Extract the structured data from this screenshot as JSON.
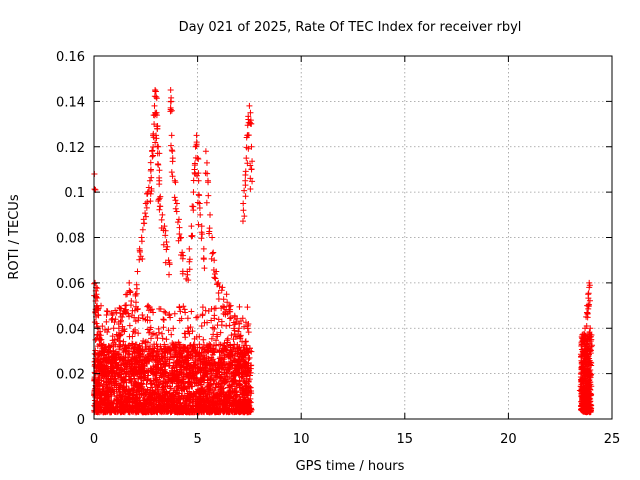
{
  "chart_data": {
    "type": "scatter",
    "title": "Day 021 of 2025, Rate Of TEC Index for receiver rbyl",
    "xlabel": "GPS time / hours",
    "ylabel": "ROTI / TECUs",
    "xlim": [
      0,
      25
    ],
    "ylim": [
      0,
      0.16
    ],
    "xticks": [
      0,
      5,
      10,
      15,
      20,
      25
    ],
    "xtick_labels": [
      "0",
      "5",
      "10",
      "15",
      "20",
      "25"
    ],
    "yticks": [
      0,
      0.02,
      0.04,
      0.06,
      0.08,
      0.1,
      0.12,
      0.14,
      0.16
    ],
    "ytick_labels": [
      "0",
      "0.02",
      "0.04",
      "0.06",
      "0.08",
      "0.1",
      "0.12",
      "0.14",
      "0.16"
    ],
    "grid": true,
    "marker": "+",
    "series_color": "#ff0000",
    "series": [
      {
        "name": "ROTI",
        "description_ranges": "dense cluster 0–7.6 h, second cluster 23.5–24 h",
        "points": [
          [
            0.02,
            0.108
          ],
          [
            0.05,
            0.06
          ],
          [
            0.1,
            0.058
          ],
          [
            0.12,
            0.055
          ],
          [
            0.08,
            0.052
          ],
          [
            0.15,
            0.05
          ],
          [
            0.1,
            0.045
          ],
          [
            0.2,
            0.04
          ],
          [
            0.3,
            0.035
          ],
          [
            0.4,
            0.03
          ],
          [
            0.5,
            0.028
          ],
          [
            0.6,
            0.025
          ],
          [
            0.8,
            0.03
          ],
          [
            1.0,
            0.035
          ],
          [
            1.2,
            0.04
          ],
          [
            1.3,
            0.045
          ],
          [
            1.5,
            0.05
          ],
          [
            1.6,
            0.055
          ],
          [
            1.7,
            0.06
          ],
          [
            1.8,
            0.052
          ],
          [
            2.0,
            0.055
          ],
          [
            2.1,
            0.065
          ],
          [
            2.2,
            0.075
          ],
          [
            2.3,
            0.08
          ],
          [
            2.4,
            0.088
          ],
          [
            2.5,
            0.095
          ],
          [
            2.6,
            0.1
          ],
          [
            2.7,
            0.105
          ],
          [
            2.75,
            0.11
          ],
          [
            2.8,
            0.118
          ],
          [
            2.85,
            0.125
          ],
          [
            2.9,
            0.13
          ],
          [
            2.92,
            0.138
          ],
          [
            2.95,
            0.145
          ],
          [
            3.0,
            0.142
          ],
          [
            3.02,
            0.135
          ],
          [
            3.05,
            0.128
          ],
          [
            3.1,
            0.12
          ],
          [
            3.1,
            0.112
          ],
          [
            3.15,
            0.105
          ],
          [
            3.2,
            0.098
          ],
          [
            3.3,
            0.09
          ],
          [
            3.4,
            0.085
          ],
          [
            3.5,
            0.078
          ],
          [
            3.6,
            0.07
          ],
          [
            3.7,
            0.145
          ],
          [
            3.72,
            0.14
          ],
          [
            3.75,
            0.125
          ],
          [
            3.8,
            0.115
          ],
          [
            3.9,
            0.105
          ],
          [
            4.0,
            0.095
          ],
          [
            4.1,
            0.088
          ],
          [
            4.2,
            0.08
          ],
          [
            4.3,
            0.072
          ],
          [
            4.5,
            0.065
          ],
          [
            4.6,
            0.075
          ],
          [
            4.7,
            0.085
          ],
          [
            4.8,
            0.1
          ],
          [
            4.85,
            0.11
          ],
          [
            4.9,
            0.12
          ],
          [
            4.95,
            0.125
          ],
          [
            5.0,
            0.115
          ],
          [
            5.05,
            0.105
          ],
          [
            5.1,
            0.095
          ],
          [
            5.2,
            0.085
          ],
          [
            5.3,
            0.075
          ],
          [
            5.4,
            0.118
          ],
          [
            5.5,
            0.105
          ],
          [
            5.6,
            0.09
          ],
          [
            5.7,
            0.08
          ],
          [
            5.8,
            0.07
          ],
          [
            5.9,
            0.065
          ],
          [
            6.0,
            0.06
          ],
          [
            6.2,
            0.058
          ],
          [
            6.4,
            0.055
          ],
          [
            6.6,
            0.05
          ],
          [
            6.8,
            0.045
          ],
          [
            7.0,
            0.04
          ],
          [
            7.2,
            0.095
          ],
          [
            7.3,
            0.105
          ],
          [
            7.35,
            0.115
          ],
          [
            7.4,
            0.125
          ],
          [
            7.45,
            0.132
          ],
          [
            7.5,
            0.138
          ],
          [
            7.55,
            0.135
          ],
          [
            7.6,
            0.12
          ],
          [
            7.6,
            0.11
          ],
          [
            23.5,
            0.02
          ],
          [
            23.55,
            0.025
          ],
          [
            23.6,
            0.03
          ],
          [
            23.65,
            0.035
          ],
          [
            23.7,
            0.04
          ],
          [
            23.75,
            0.045
          ],
          [
            23.8,
            0.05
          ],
          [
            23.85,
            0.055
          ],
          [
            23.9,
            0.06
          ],
          [
            23.9,
            0.058
          ],
          [
            23.95,
            0.04
          ],
          [
            24.0,
            0.035
          ]
        ]
      }
    ]
  }
}
